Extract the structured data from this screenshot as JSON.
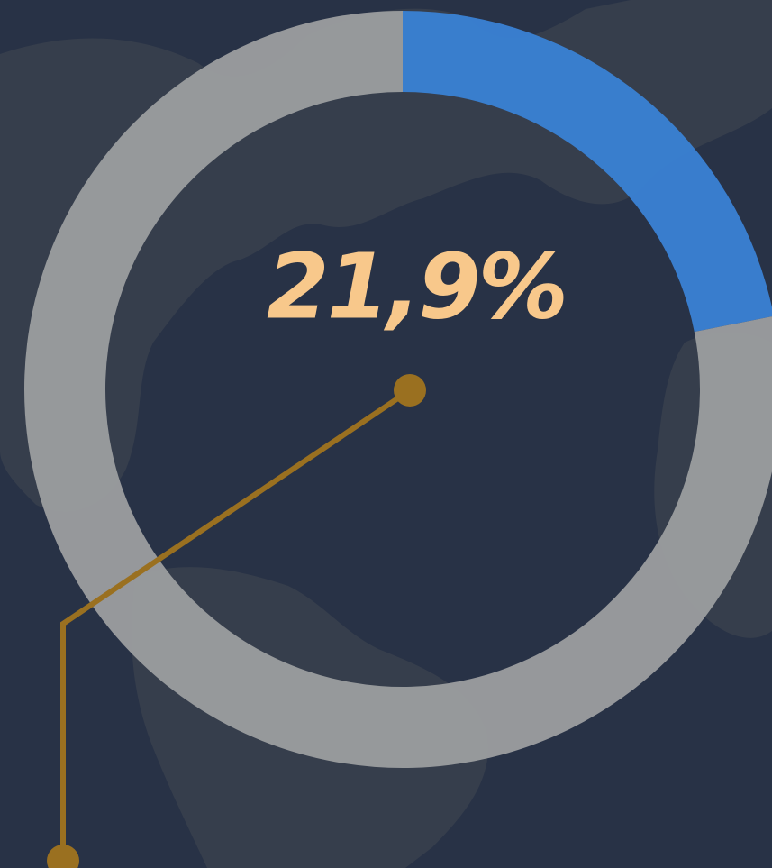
{
  "chart_data": {
    "type": "donut",
    "values": [
      21.9,
      78.1
    ],
    "value_labels": [
      "21,9%",
      null
    ],
    "colors": [
      "#3a80d2",
      "#9a9c9e"
    ]
  }
}
